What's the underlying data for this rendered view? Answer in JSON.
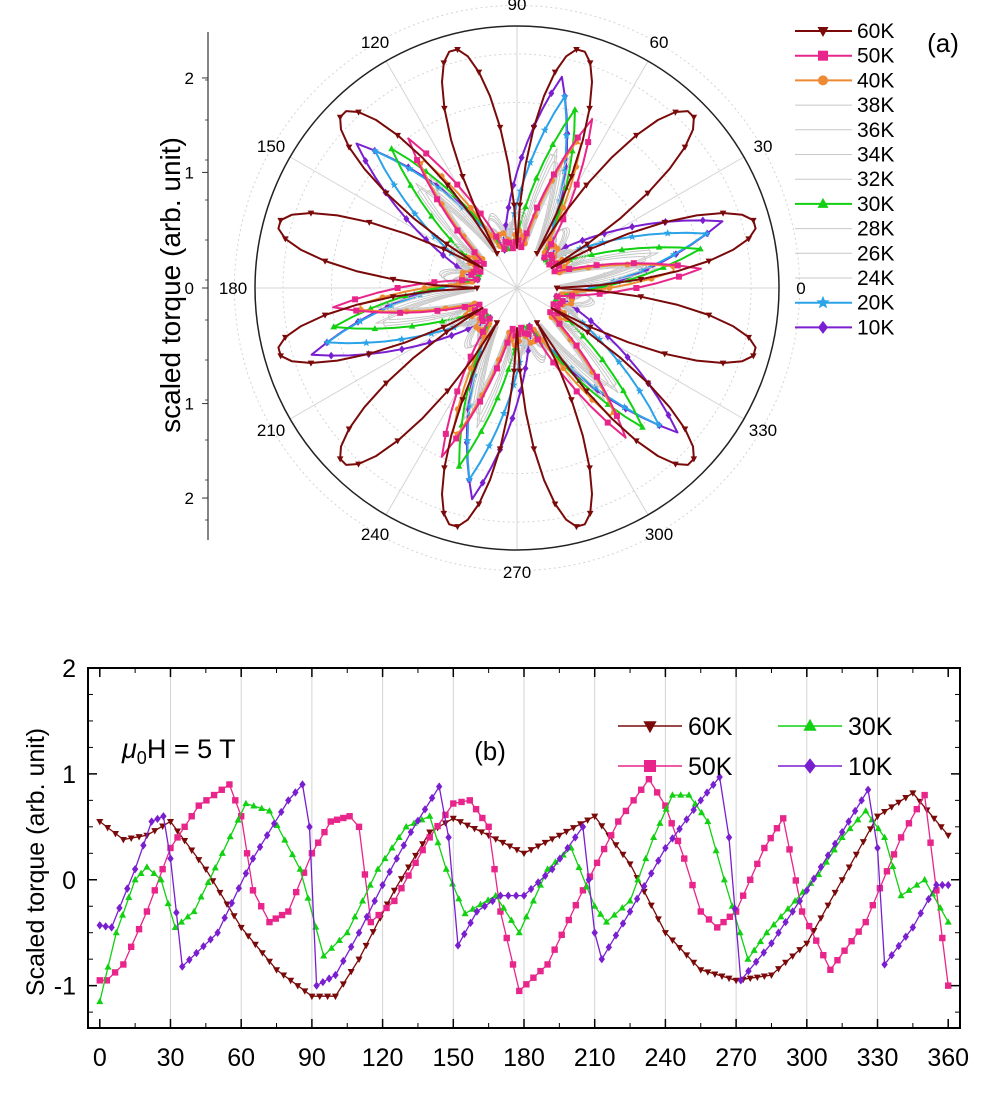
{
  "colors": {
    "60K": "#7a0a0a",
    "50K": "#e8258a",
    "40K": "#ee8a33",
    "30K": "#12d012",
    "20K": "#2aa3e8",
    "10K": "#7a1fd0",
    "intermediate": "#c8c8c8",
    "grid": "#d4d4d4"
  },
  "chart_data": [
    {
      "id": "a",
      "type": "line",
      "projection": "polar",
      "panel_label": "(a)",
      "ylabel": "scaled torque (arb. unit)",
      "angle_ticks": [
        "0",
        "30",
        "60",
        "90",
        "120",
        "150",
        "180",
        "210",
        "240",
        "270",
        "300",
        "330"
      ],
      "radial_ticks": [
        "0",
        "1",
        "2"
      ],
      "radial_range": [
        0,
        2.5
      ],
      "radial_offset": 0.35,
      "legend_position": "right",
      "series": [
        {
          "name": "60K",
          "marker": "triangle-down",
          "amplitude": 1.0,
          "phase": 0,
          "sharp": 0.0,
          "freq": 6
        },
        {
          "name": "50K",
          "marker": "square",
          "amplitude": 1.0,
          "phase": 6,
          "sharp": 0.7,
          "freq": 6
        },
        {
          "name": "40K",
          "marker": "circle",
          "amplitude": 0.96,
          "phase": 7,
          "sharp": 0.65,
          "freq": 6
        },
        {
          "name": "38K",
          "marker": "none",
          "amplitude": 0.9,
          "phase": 8,
          "sharp": 0.55,
          "freq": 6
        },
        {
          "name": "36K",
          "marker": "none",
          "amplitude": 0.85,
          "phase": 9,
          "sharp": 0.55,
          "freq": 6
        },
        {
          "name": "34K",
          "marker": "none",
          "amplitude": 0.8,
          "phase": 10,
          "sharp": 0.55,
          "freq": 6
        },
        {
          "name": "32K",
          "marker": "none",
          "amplitude": 0.78,
          "phase": 11,
          "sharp": 0.55,
          "freq": 6
        },
        {
          "name": "30K",
          "marker": "triangle-up",
          "amplitude": 0.95,
          "phase": 12,
          "sharp": 0.75,
          "freq": 6
        },
        {
          "name": "28K",
          "marker": "none",
          "amplitude": 0.82,
          "phase": 13,
          "sharp": 0.6,
          "freq": 6
        },
        {
          "name": "26K",
          "marker": "none",
          "amplitude": 0.85,
          "phase": 14,
          "sharp": 0.6,
          "freq": 6
        },
        {
          "name": "24K",
          "marker": "none",
          "amplitude": 0.88,
          "phase": 15,
          "sharp": 0.6,
          "freq": 6
        },
        {
          "name": "20K",
          "marker": "star",
          "amplitude": 0.95,
          "phase": 16,
          "sharp": 0.8,
          "freq": 6
        },
        {
          "name": "10K",
          "marker": "diamond",
          "amplitude": 1.0,
          "phase": 18,
          "sharp": 0.85,
          "freq": 6
        }
      ]
    },
    {
      "id": "b",
      "type": "line",
      "panel_label": "(b)",
      "annotation_mu": "μ",
      "annotation_sub": "0",
      "annotation_rest": "H = 5 T",
      "ylabel": "Scaled torque (arb. unit)",
      "xlim": [
        -5,
        365
      ],
      "ylim": [
        -1.4,
        2
      ],
      "xticks": [
        0,
        30,
        60,
        90,
        120,
        150,
        180,
        210,
        240,
        270,
        300,
        330,
        360
      ],
      "yticks": [
        -1,
        0,
        1,
        2
      ],
      "vertical_grid": [
        30,
        60,
        90,
        120,
        150,
        180,
        210,
        240,
        270,
        300,
        330
      ],
      "legend_position": "top-right",
      "series": [
        {
          "name": "60K",
          "marker": "triangle-down",
          "x": [
            0,
            10,
            20,
            30,
            45,
            60,
            75,
            90,
            100,
            110,
            125,
            140,
            150,
            165,
            180,
            195,
            210,
            225,
            240,
            255,
            270,
            285,
            300,
            315,
            330,
            345,
            360
          ],
          "y": [
            0.55,
            0.38,
            0.42,
            0.55,
            0.1,
            -0.45,
            -0.85,
            -1.1,
            -1.1,
            -0.75,
            -0.1,
            0.45,
            0.58,
            0.42,
            0.25,
            0.42,
            0.6,
            0.15,
            -0.5,
            -0.85,
            -0.95,
            -0.9,
            -0.6,
            0.0,
            0.6,
            0.82,
            0.42
          ]
        },
        {
          "name": "50K",
          "marker": "square",
          "x": [
            0,
            3,
            10,
            20,
            30,
            42,
            55,
            60,
            65,
            72,
            80,
            90,
            98,
            106,
            110,
            115,
            125,
            140,
            150,
            157,
            165,
            170,
            178,
            190,
            205,
            220,
            233,
            240,
            248,
            255,
            262,
            270,
            282,
            290,
            298,
            310,
            325,
            340,
            350,
            355,
            360
          ],
          "y": [
            -0.95,
            -0.95,
            -0.8,
            -0.3,
            0.3,
            0.7,
            0.9,
            0.6,
            -0.1,
            -0.4,
            -0.3,
            0.25,
            0.55,
            0.6,
            0.5,
            -0.4,
            -0.2,
            0.4,
            0.72,
            0.75,
            0.5,
            -0.3,
            -1.05,
            -0.8,
            -0.1,
            0.55,
            0.95,
            0.7,
            0.2,
            -0.3,
            -0.45,
            -0.3,
            0.3,
            0.58,
            -0.3,
            -0.85,
            -0.4,
            0.4,
            0.8,
            -0.1,
            -1.0
          ]
        },
        {
          "name": "30K",
          "marker": "triangle-up",
          "x": [
            0,
            7,
            15,
            20,
            26,
            32,
            40,
            52,
            62,
            72,
            85,
            95,
            105,
            118,
            130,
            140,
            147,
            155,
            168,
            178,
            190,
            200,
            210,
            215,
            225,
            235,
            243,
            250,
            258,
            265,
            275,
            283,
            295,
            305,
            315,
            325,
            333,
            340,
            350,
            360
          ],
          "y": [
            -1.15,
            -0.5,
            0.0,
            0.12,
            0.0,
            -0.45,
            -0.3,
            0.25,
            0.72,
            0.65,
            0.1,
            -0.72,
            -0.5,
            0.1,
            0.5,
            0.6,
            0.1,
            -0.32,
            -0.15,
            -0.5,
            0.1,
            0.3,
            -0.25,
            -0.4,
            -0.2,
            0.4,
            0.8,
            0.8,
            0.55,
            0.0,
            -0.75,
            -0.5,
            -0.2,
            0.05,
            0.4,
            0.65,
            0.4,
            -0.15,
            0.0,
            -0.4
          ]
        },
        {
          "name": "10K",
          "marker": "diamond",
          "x": [
            0,
            5,
            15,
            22,
            27,
            30,
            35,
            50,
            65,
            80,
            86,
            89,
            92,
            100,
            110,
            120,
            132,
            144,
            148,
            152,
            160,
            170,
            180,
            192,
            205,
            210,
            213,
            225,
            240,
            255,
            263,
            267,
            272,
            285,
            300,
            315,
            326,
            330,
            333,
            345,
            355,
            360
          ],
          "y": [
            -0.43,
            -0.45,
            0.1,
            0.55,
            0.6,
            0.2,
            -0.82,
            -0.5,
            0.2,
            0.75,
            0.9,
            0.5,
            -1.0,
            -0.9,
            -0.5,
            -0.05,
            0.45,
            0.88,
            0.4,
            -0.62,
            -0.3,
            -0.15,
            -0.15,
            0.1,
            0.5,
            -0.5,
            -0.75,
            -0.3,
            0.3,
            0.75,
            0.97,
            0.4,
            -0.95,
            -0.6,
            -0.1,
            0.45,
            0.85,
            0.3,
            -0.8,
            -0.45,
            -0.05,
            -0.05
          ]
        }
      ]
    }
  ]
}
